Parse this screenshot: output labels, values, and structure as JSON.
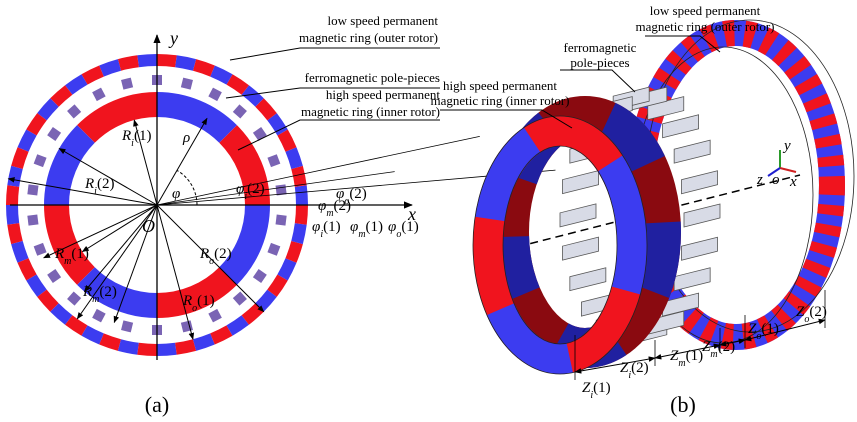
{
  "figure_a": {
    "caption": "(a)",
    "axis_y": "y",
    "axis_x": "x",
    "origin": "O",
    "callouts": {
      "outer_ring": [
        "low speed permanent",
        "magnetic ring (outer rotor)"
      ],
      "pole_pieces": [
        "ferromagnetic pole-pieces"
      ],
      "inner_ring": [
        "high speed permanent",
        "magnetic ring (inner rotor)"
      ]
    },
    "labels": [
      {
        "sym": "R",
        "sub": "i",
        "idx": "(1)"
      },
      {
        "sym": "R",
        "sub": "i",
        "idx": "(2)"
      },
      {
        "sym": "R",
        "sub": "m",
        "idx": "(1)"
      },
      {
        "sym": "R",
        "sub": "m",
        "idx": "(2)"
      },
      {
        "sym": "R",
        "sub": "o",
        "idx": "(2)"
      },
      {
        "sym": "R",
        "sub": "o",
        "idx": "(1)"
      },
      {
        "sym": "ρ",
        "sub": "",
        "idx": ""
      },
      {
        "sym": "φ",
        "sub": "",
        "idx": ""
      },
      {
        "sym": "φ",
        "sub": "i",
        "idx": "(2)"
      },
      {
        "sym": "φ",
        "sub": "m",
        "idx": "(2)"
      },
      {
        "sym": "φ",
        "sub": "o",
        "idx": "(2)"
      },
      {
        "sym": "φ",
        "sub": "i",
        "idx": "(1)"
      },
      {
        "sym": "φ",
        "sub": "m",
        "idx": "(1)"
      },
      {
        "sym": "φ",
        "sub": "o",
        "idx": "(1)"
      }
    ]
  },
  "figure_b": {
    "caption": "(b)",
    "callouts": {
      "outer_ring": [
        "low speed permanent",
        "magnetic ring (outer rotor)"
      ],
      "pole_pieces": [
        "ferromagnetic",
        "pole-pieces"
      ],
      "inner_ring": [
        "high speed permanent",
        "magnetic ring (inner rotor)"
      ]
    },
    "axes": [
      "y",
      "z",
      "o",
      "x"
    ],
    "labels": [
      {
        "sym": "Z",
        "sub": "i",
        "idx": "(1)"
      },
      {
        "sym": "Z",
        "sub": "i",
        "idx": "(2)"
      },
      {
        "sym": "Z",
        "sub": "m",
        "idx": "(1)"
      },
      {
        "sym": "Z",
        "sub": "m",
        "idx": "(2)"
      },
      {
        "sym": "Z",
        "sub": "o",
        "idx": "(1)"
      },
      {
        "sym": "Z",
        "sub": "o",
        "idx": "(2)"
      }
    ]
  }
}
